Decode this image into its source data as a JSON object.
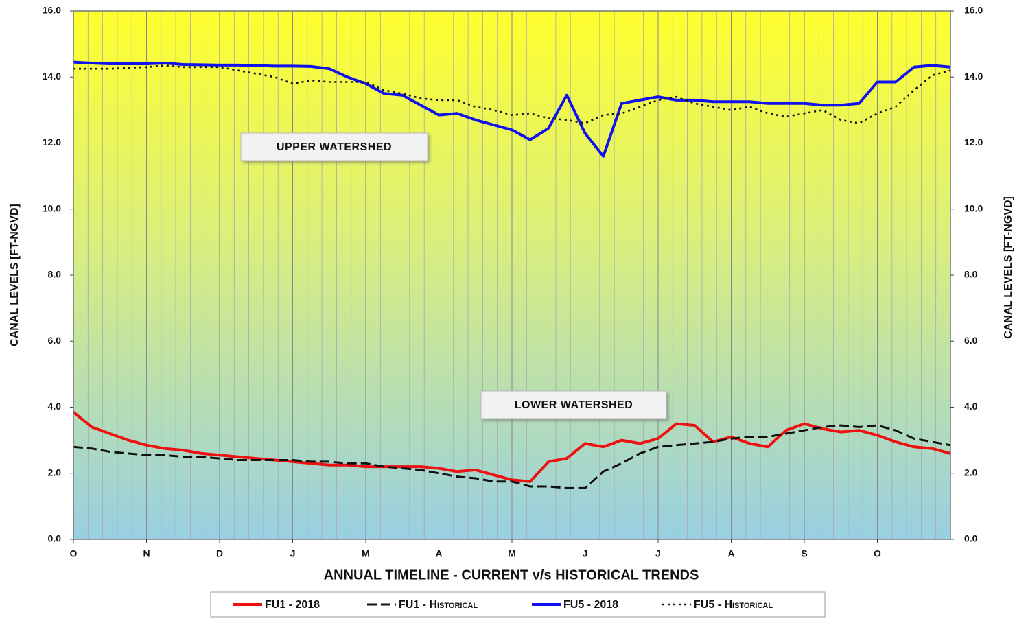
{
  "chart_data": {
    "type": "line",
    "xlabel": "ANNUAL TIMELINE - CURRENT v/s HISTORICAL TRENDS",
    "ylabel": "CANAL LEVELS [FT-NGVD]",
    "y2label": "CANAL LEVELS [FT-NGVD]",
    "annotations": [
      "UPPER WATERSHED",
      "LOWER WATERSHED"
    ],
    "xlim": [
      0,
      12
    ],
    "xticks": [
      {
        "value": 0,
        "label": "O"
      },
      {
        "value": 1,
        "label": "N"
      },
      {
        "value": 2,
        "label": "D"
      },
      {
        "value": 3,
        "label": "J"
      },
      {
        "value": 4,
        "label": "M"
      },
      {
        "value": 5,
        "label": "A"
      },
      {
        "value": 6,
        "label": "M"
      },
      {
        "value": 7,
        "label": "J"
      },
      {
        "value": 8,
        "label": "J"
      },
      {
        "value": 9,
        "label": "A"
      },
      {
        "value": 10,
        "label": "S"
      },
      {
        "value": 11,
        "label": "O"
      }
    ],
    "ylim": [
      0,
      16
    ],
    "yticks": [
      {
        "value": 0,
        "label": "0.0"
      },
      {
        "value": 2,
        "label": "2.0"
      },
      {
        "value": 4,
        "label": "4.0"
      },
      {
        "value": 6,
        "label": "6.0"
      },
      {
        "value": 8,
        "label": "8.0"
      },
      {
        "value": 10,
        "label": "10.0"
      },
      {
        "value": 12,
        "label": "12.0"
      },
      {
        "value": 14,
        "label": "14.0"
      },
      {
        "value": 16,
        "label": "16.0"
      }
    ],
    "y2lim": [
      0,
      16
    ],
    "y2ticks": [
      {
        "value": 0,
        "label": "0.0"
      },
      {
        "value": 2,
        "label": "2.0"
      },
      {
        "value": 4,
        "label": "4.0"
      },
      {
        "value": 6,
        "label": "6.0"
      },
      {
        "value": 8,
        "label": "8.0"
      },
      {
        "value": 10,
        "label": "10.0"
      },
      {
        "value": 12,
        "label": "12.0"
      },
      {
        "value": 14,
        "label": "14.0"
      },
      {
        "value": 16,
        "label": "16.0"
      }
    ],
    "grid": true,
    "x": [
      0,
      0.25,
      0.5,
      0.75,
      1,
      1.25,
      1.5,
      1.75,
      2,
      2.25,
      2.5,
      2.75,
      3,
      3.25,
      3.5,
      3.75,
      4,
      4.25,
      4.5,
      4.75,
      5,
      5.25,
      5.5,
      5.75,
      6,
      6.25,
      6.5,
      6.75,
      7,
      7.25,
      7.5,
      7.75,
      8,
      8.25,
      8.5,
      8.75,
      9,
      9.25,
      9.5,
      9.75,
      10,
      10.25,
      10.5,
      10.75,
      11,
      11.25,
      11.5,
      11.75,
      12
    ],
    "series": [
      {
        "name": "FU1 - 2018",
        "color": "#ee1111",
        "dash": "solid",
        "values": [
          3.85,
          3.4,
          3.2,
          3.0,
          2.85,
          2.75,
          2.7,
          2.6,
          2.55,
          2.5,
          2.45,
          2.4,
          2.35,
          2.3,
          2.25,
          2.25,
          2.2,
          2.2,
          2.2,
          2.2,
          2.15,
          2.05,
          2.1,
          1.95,
          1.8,
          1.75,
          2.35,
          2.45,
          2.9,
          2.8,
          3.0,
          2.9,
          3.05,
          3.5,
          3.45,
          2.95,
          3.1,
          2.9,
          2.8,
          3.3,
          3.5,
          3.35,
          3.25,
          3.3,
          3.15,
          2.95,
          2.8,
          2.75,
          2.6
        ]
      },
      {
        "name": "FU1 - Historical",
        "color": "#111111",
        "dash": "dashed",
        "values": [
          2.8,
          2.75,
          2.65,
          2.6,
          2.55,
          2.55,
          2.5,
          2.5,
          2.45,
          2.4,
          2.4,
          2.4,
          2.4,
          2.35,
          2.35,
          2.3,
          2.3,
          2.2,
          2.15,
          2.1,
          2.0,
          1.9,
          1.85,
          1.75,
          1.75,
          1.6,
          1.6,
          1.55,
          1.55,
          2.05,
          2.3,
          2.6,
          2.8,
          2.85,
          2.9,
          2.95,
          3.05,
          3.1,
          3.1,
          3.2,
          3.3,
          3.4,
          3.45,
          3.4,
          3.45,
          3.3,
          3.05,
          2.95,
          2.85
        ]
      },
      {
        "name": "FU5 - 2018",
        "color": "#1111ee",
        "dash": "solid",
        "values": [
          14.45,
          14.42,
          14.4,
          14.4,
          14.4,
          14.42,
          14.38,
          14.37,
          14.36,
          14.36,
          14.35,
          14.33,
          14.33,
          14.32,
          14.25,
          14.0,
          13.8,
          13.5,
          13.45,
          13.15,
          12.85,
          12.9,
          12.7,
          12.55,
          12.4,
          12.1,
          12.45,
          13.45,
          12.3,
          11.6,
          13.2,
          13.3,
          13.4,
          13.3,
          13.3,
          13.25,
          13.25,
          13.25,
          13.2,
          13.2,
          13.2,
          13.15,
          13.15,
          13.2,
          13.85,
          13.85,
          14.3,
          14.35,
          14.3
        ]
      },
      {
        "name": "FU5 - Historical",
        "color": "#111111",
        "dash": "dotted",
        "values": [
          14.25,
          14.25,
          14.25,
          14.28,
          14.3,
          14.35,
          14.3,
          14.3,
          14.3,
          14.2,
          14.1,
          14.0,
          13.8,
          13.9,
          13.85,
          13.85,
          13.85,
          13.6,
          13.5,
          13.35,
          13.3,
          13.3,
          13.1,
          13.0,
          12.85,
          12.9,
          12.75,
          12.7,
          12.6,
          12.85,
          12.9,
          13.1,
          13.3,
          13.4,
          13.2,
          13.1,
          13.0,
          13.1,
          12.9,
          12.8,
          12.9,
          13.0,
          12.7,
          12.6,
          12.9,
          13.1,
          13.6,
          14.05,
          14.2
        ]
      }
    ]
  }
}
